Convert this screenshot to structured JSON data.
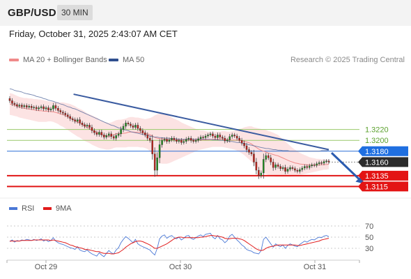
{
  "header": {
    "symbol": "GBP/USD",
    "timeframe": "30 MIN"
  },
  "datetime": "Friday, October 31, 2025 2:43:07 AM CET",
  "legend": {
    "ma20": {
      "label": "MA 20 + Bollinger Bands",
      "color": "#f08a8a"
    },
    "ma50": {
      "label": "MA 50",
      "color": "#2f4f8f"
    },
    "credit": "Research © 2025 Trading Central"
  },
  "rsi_legend": {
    "rsi": {
      "label": "RSI",
      "color": "#4a78d6"
    },
    "ma9": {
      "label": "9MA",
      "color": "#e11b1b"
    }
  },
  "chart_data": [
    {
      "type": "candlestick",
      "x_ticks": [
        "Oct 29",
        "Oct 30",
        "Oct 31"
      ],
      "ylim": [
        1.3095,
        1.333
      ],
      "last_price": 1.316,
      "levels": [
        {
          "value": 1.322,
          "label": "1.3220",
          "kind": "resistance",
          "color": "#9ac96a"
        },
        {
          "value": 1.32,
          "label": "1.3200",
          "kind": "resistance",
          "color": "#9ac96a"
        },
        {
          "value": 1.318,
          "label": "1.3180",
          "kind": "pivot",
          "color": "#2a6fd6"
        },
        {
          "value": 1.316,
          "label": "1.3160",
          "kind": "last",
          "color": "#333333"
        },
        {
          "value": 1.3135,
          "label": "1.3135",
          "kind": "support",
          "color": "#e01515"
        },
        {
          "value": 1.3115,
          "label": "1.3115",
          "kind": "support",
          "color": "#e01515"
        }
      ],
      "close": [
        1.3273,
        1.3268,
        1.3266,
        1.3263,
        1.3265,
        1.3262,
        1.3264,
        1.3261,
        1.3263,
        1.326,
        1.3261,
        1.3258,
        1.326,
        1.3262,
        1.3258,
        1.326,
        1.3256,
        1.3258,
        1.3264,
        1.3259,
        1.3255,
        1.3252,
        1.325,
        1.3247,
        1.3244,
        1.324,
        1.3238,
        1.3235,
        1.3238,
        1.3232,
        1.3229,
        1.3226,
        1.3228,
        1.3224,
        1.3218,
        1.3214,
        1.3211,
        1.3215,
        1.321,
        1.3206,
        1.3209,
        1.3212,
        1.3207,
        1.3204,
        1.3209,
        1.3212,
        1.322,
        1.3226,
        1.3232,
        1.323,
        1.3227,
        1.3224,
        1.3228,
        1.3222,
        1.3218,
        1.3214,
        1.321,
        1.3204,
        1.32,
        1.3175,
        1.3145,
        1.3168,
        1.3192,
        1.32,
        1.3202,
        1.3198,
        1.3201,
        1.3204,
        1.3201,
        1.3198,
        1.32,
        1.3196,
        1.3198,
        1.3202,
        1.3204,
        1.32,
        1.3198,
        1.32,
        1.3203,
        1.3206,
        1.3205,
        1.3208,
        1.321,
        1.3212,
        1.3208,
        1.3205,
        1.321,
        1.3206,
        1.3204,
        1.3199,
        1.3201,
        1.3207,
        1.321,
        1.3208,
        1.3204,
        1.32,
        1.3195,
        1.319,
        1.3183,
        1.3178,
        1.3175,
        1.316,
        1.3145,
        1.3135,
        1.314,
        1.3165,
        1.3172,
        1.3168,
        1.316,
        1.315,
        1.3155,
        1.3152,
        1.3148,
        1.315,
        1.3143,
        1.3147,
        1.315,
        1.3148,
        1.3145,
        1.3143,
        1.3146,
        1.3149,
        1.3152,
        1.315,
        1.3153,
        1.3155,
        1.3154,
        1.3157,
        1.3159,
        1.3158,
        1.3161,
        1.3162,
        1.316
      ],
      "ma20_upper": [
        1.3287,
        1.3286,
        1.3284,
        1.3282,
        1.328,
        1.3279,
        1.3278,
        1.3278,
        1.3277,
        1.3277,
        1.3276,
        1.3276,
        1.3275,
        1.3275,
        1.3274,
        1.3273,
        1.3272,
        1.3271,
        1.3271,
        1.3271,
        1.327,
        1.327,
        1.327,
        1.3269,
        1.3268,
        1.3267,
        1.3265,
        1.3263,
        1.326,
        1.3258,
        1.3256,
        1.3253,
        1.325,
        1.3248,
        1.3246,
        1.3244,
        1.3242,
        1.3239,
        1.3236,
        1.3234,
        1.3233,
        1.3232,
        1.3233,
        1.3235,
        1.3237,
        1.3238,
        1.3238,
        1.3239,
        1.324,
        1.3242,
        1.3243,
        1.3243,
        1.3242,
        1.3242,
        1.3241,
        1.324,
        1.3239,
        1.324,
        1.3241,
        1.3243,
        1.3246,
        1.3248,
        1.3249,
        1.3248,
        1.3248,
        1.3247,
        1.3245,
        1.3242,
        1.324,
        1.3238,
        1.3236,
        1.3233,
        1.3231,
        1.3229,
        1.3227,
        1.3225,
        1.3223,
        1.3221,
        1.3219,
        1.3218,
        1.3218,
        1.3217,
        1.3216,
        1.3216,
        1.3216,
        1.3216,
        1.3216,
        1.3216,
        1.3217,
        1.3217,
        1.3216,
        1.3216,
        1.3217,
        1.3218,
        1.322,
        1.3221,
        1.3222,
        1.3224,
        1.3225,
        1.3226,
        1.3226,
        1.3224,
        1.3223,
        1.3222,
        1.3221,
        1.322,
        1.3219,
        1.3217,
        1.3216,
        1.3214,
        1.3212,
        1.321,
        1.3206,
        1.3202,
        1.3198,
        1.3194,
        1.319,
        1.3186,
        1.3183,
        1.318,
        1.3177,
        1.3175,
        1.3173,
        1.3171,
        1.3169,
        1.3168,
        1.3167,
        1.3166,
        1.3166,
        1.3165,
        1.3165,
        1.3165,
        1.3165
      ],
      "ma20_lower": [
        1.3247,
        1.3246,
        1.3245,
        1.3244,
        1.3242,
        1.3241,
        1.324,
        1.3239,
        1.3238,
        1.3237,
        1.3236,
        1.3235,
        1.3234,
        1.3234,
        1.3234,
        1.3234,
        1.3235,
        1.3235,
        1.3234,
        1.3232,
        1.323,
        1.3227,
        1.3225,
        1.3222,
        1.3219,
        1.3216,
        1.3213,
        1.321,
        1.3207,
        1.3205,
        1.3202,
        1.3199,
        1.3197,
        1.3195,
        1.3192,
        1.319,
        1.3188,
        1.3186,
        1.3185,
        1.3184,
        1.3183,
        1.3183,
        1.3184,
        1.3186,
        1.3187,
        1.3187,
        1.3187,
        1.3187,
        1.3187,
        1.3188,
        1.3188,
        1.3188,
        1.3188,
        1.3188,
        1.3187,
        1.3187,
        1.3186,
        1.3184,
        1.318,
        1.3173,
        1.3165,
        1.316,
        1.3158,
        1.3157,
        1.3157,
        1.3157,
        1.3158,
        1.316,
        1.3162,
        1.3164,
        1.3166,
        1.3168,
        1.317,
        1.3172,
        1.3174,
        1.3176,
        1.3178,
        1.318,
        1.3182,
        1.3183,
        1.3184,
        1.3185,
        1.3186,
        1.3187,
        1.3188,
        1.3188,
        1.3188,
        1.3188,
        1.3188,
        1.3187,
        1.3186,
        1.3185,
        1.3184,
        1.3183,
        1.3181,
        1.3179,
        1.3176,
        1.3173,
        1.3169,
        1.3165,
        1.3161,
        1.3156,
        1.3151,
        1.3146,
        1.3142,
        1.314,
        1.3138,
        1.3136,
        1.3135,
        1.3134,
        1.3133,
        1.3133,
        1.3133,
        1.3133,
        1.3133,
        1.3133,
        1.3133,
        1.3134,
        1.3134,
        1.3135,
        1.3136,
        1.3137,
        1.3138,
        1.3139,
        1.314,
        1.3141,
        1.3142,
        1.3143,
        1.3144,
        1.3145,
        1.3146,
        1.3146,
        1.3147
      ],
      "ma50": [
        1.3295,
        1.3294,
        1.3292,
        1.3291,
        1.329,
        1.3289,
        1.3287,
        1.3286,
        1.3285,
        1.3284,
        1.3283,
        1.3281,
        1.328,
        1.3279,
        1.3277,
        1.3276,
        1.3274,
        1.3273,
        1.3272,
        1.327,
        1.3269,
        1.3267,
        1.3266,
        1.3264,
        1.3262,
        1.3261,
        1.3259,
        1.3258,
        1.3256,
        1.3254,
        1.3252,
        1.325,
        1.3248,
        1.3246,
        1.3244,
        1.3242,
        1.324,
        1.3238,
        1.3236,
        1.3234,
        1.3232,
        1.323,
        1.3228,
        1.3227,
        1.3225,
        1.3223,
        1.3222,
        1.322,
        1.3219,
        1.3218,
        1.3216,
        1.3215,
        1.3214,
        1.3213,
        1.3212,
        1.3211,
        1.321,
        1.3209,
        1.3208,
        1.3207,
        1.3206,
        1.3206,
        1.3205,
        1.3205,
        1.3204,
        1.3204,
        1.3204,
        1.3203,
        1.3203,
        1.3203,
        1.3202,
        1.3202,
        1.3202,
        1.3202,
        1.3202,
        1.3202,
        1.3202,
        1.3202,
        1.3202,
        1.3202,
        1.3202,
        1.3202,
        1.3202,
        1.3202,
        1.3201,
        1.3201,
        1.3201,
        1.32,
        1.32,
        1.32,
        1.3199,
        1.3198,
        1.3198,
        1.3197,
        1.3196,
        1.3196,
        1.3195,
        1.3194,
        1.3193,
        1.3192,
        1.3191,
        1.319,
        1.3189,
        1.3188,
        1.3187,
        1.3186,
        1.3185,
        1.3185,
        1.3184,
        1.3183,
        1.3183,
        1.3182,
        1.3182,
        1.3181,
        1.3181,
        1.3181,
        1.318,
        1.318,
        1.318,
        1.318,
        1.318,
        1.318,
        1.318,
        1.318,
        1.318,
        1.318,
        1.318,
        1.318,
        1.318,
        1.3181,
        1.3181,
        1.3181,
        1.3182
      ],
      "trendline": {
        "from": [
          0.2,
          1.3285
        ],
        "to": [
          1.0,
          1.3183
        ]
      },
      "arrow": {
        "from": [
          1.0,
          1.3177
        ],
        "to": [
          1.11,
          1.312
        ]
      }
    },
    {
      "type": "line",
      "name": "RSI",
      "ylim": [
        15,
        85
      ],
      "y_ticks": [
        70,
        50,
        30
      ],
      "rsi": [
        42,
        45,
        41,
        44,
        43,
        45,
        44,
        46,
        45,
        44,
        46,
        44,
        45,
        47,
        43,
        45,
        42,
        44,
        49,
        43,
        40,
        38,
        37,
        35,
        33,
        31,
        30,
        28,
        33,
        27,
        25,
        24,
        27,
        23,
        20,
        18,
        16,
        22,
        18,
        15,
        21,
        26,
        22,
        20,
        27,
        31,
        40,
        46,
        51,
        48,
        44,
        40,
        46,
        38,
        35,
        33,
        31,
        29,
        27,
        22,
        18,
        30,
        47,
        52,
        54,
        48,
        51,
        53,
        49,
        47,
        50,
        45,
        48,
        52,
        53,
        48,
        46,
        49,
        52,
        54,
        51,
        55,
        56,
        57,
        50,
        47,
        53,
        47,
        45,
        40,
        44,
        52,
        55,
        50,
        45,
        41,
        36,
        33,
        28,
        26,
        25,
        22,
        21,
        20,
        26,
        46,
        50,
        44,
        38,
        32,
        38,
        35,
        33,
        36,
        30,
        35,
        38,
        36,
        34,
        33,
        37,
        40,
        43,
        41,
        44,
        46,
        45,
        48,
        50,
        49,
        52,
        53,
        51
      ],
      "ma9": [
        43,
        43,
        43,
        43,
        43,
        44,
        44,
        44,
        44,
        44,
        45,
        45,
        45,
        45,
        45,
        45,
        45,
        44,
        45,
        44,
        43,
        42,
        41,
        40,
        38,
        36,
        35,
        33,
        32,
        31,
        30,
        28,
        28,
        27,
        26,
        25,
        24,
        24,
        22,
        21,
        21,
        21,
        20,
        20,
        21,
        22,
        25,
        28,
        32,
        35,
        38,
        40,
        42,
        43,
        43,
        42,
        40,
        38,
        36,
        33,
        30,
        30,
        32,
        34,
        36,
        38,
        41,
        44,
        47,
        49,
        50,
        50,
        49,
        49,
        49,
        49,
        49,
        49,
        49,
        50,
        50,
        51,
        52,
        53,
        53,
        52,
        52,
        51,
        50,
        48,
        47,
        47,
        48,
        48,
        48,
        47,
        46,
        44,
        41,
        38,
        35,
        32,
        29,
        27,
        26,
        27,
        30,
        32,
        33,
        34,
        35,
        36,
        36,
        36,
        36,
        36,
        36,
        36,
        36,
        35,
        35,
        36,
        37,
        38,
        39,
        40,
        41,
        42,
        43,
        45,
        46,
        47,
        48
      ]
    }
  ]
}
